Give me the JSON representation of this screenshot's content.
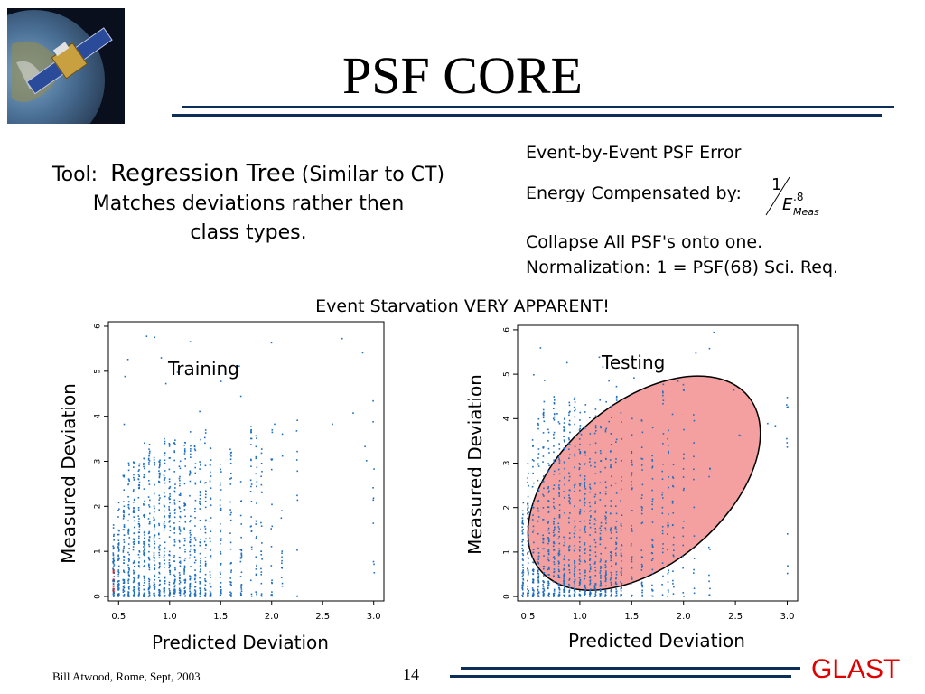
{
  "slide": {
    "title": "PSF CORE",
    "tool_prefix": "Tool:",
    "tool_name": "Regression Tree",
    "tool_similar": "(Similar to CT)",
    "tool_line2": "Matches deviations rather then",
    "tool_line3": "class types.",
    "event_psf_error": "Event-by-Event PSF Error",
    "energy_compensated": "Energy Compensated by:",
    "frac_numerator": "1",
    "frac_base": "E",
    "frac_exponent": ".8",
    "frac_subscript": "Meas",
    "collapse": "Collapse All PSF's onto one.",
    "normalization": "Normalization:  1 = PSF(68) Sci. Req.",
    "starvation": "Event Starvation VERY APPARENT!",
    "footer_author": "Bill Atwood,  Rome, Sept, 2003",
    "page_number": "14",
    "logo": "GLAST"
  },
  "chart_data": [
    {
      "type": "scatter",
      "title": "Training",
      "xlabel": "Predicted Deviation",
      "ylabel": "Measured Deviation",
      "xlim": [
        0.4,
        3.1
      ],
      "ylim": [
        -0.1,
        6.1
      ],
      "xticks": [
        "0.5",
        "1.0",
        "1.5",
        "2.0",
        "2.5",
        "3.0"
      ],
      "yticks": [
        "0",
        "1",
        "2",
        "3",
        "4",
        "5",
        "6"
      ],
      "point_color": "#1f6fbf",
      "x_columns": [
        0.45,
        0.5,
        0.55,
        0.6,
        0.65,
        0.7,
        0.75,
        0.8,
        0.85,
        0.9,
        0.95,
        1.0,
        1.05,
        1.1,
        1.15,
        1.2,
        1.25,
        1.3,
        1.35,
        1.4,
        1.5,
        1.6,
        1.7,
        1.8,
        1.85,
        1.9,
        2.0,
        2.1,
        2.25,
        3.0
      ],
      "column_max_y": [
        1.6,
        2.2,
        2.8,
        3.0,
        3.2,
        3.0,
        3.6,
        3.4,
        3.5,
        3.2,
        3.6,
        3.4,
        3.5,
        3.2,
        3.6,
        3.8,
        3.4,
        3.6,
        3.8,
        3.6,
        3.0,
        3.4,
        3.0,
        3.8,
        3.7,
        3.4,
        4.0,
        3.9,
        4.3,
        4.4
      ],
      "highlight_color": "#cc2222"
    },
    {
      "type": "scatter",
      "title": "Testing",
      "xlabel": "Predicted Deviation",
      "ylabel": "Measured Deviation",
      "xlim": [
        0.4,
        3.1
      ],
      "ylim": [
        -0.1,
        6.1
      ],
      "xticks": [
        "0.5",
        "1.0",
        "1.5",
        "2.0",
        "2.5",
        "3.0"
      ],
      "yticks": [
        "0",
        "1",
        "2",
        "3",
        "4",
        "5",
        "6"
      ],
      "point_color": "#1f6fbf",
      "x_columns": [
        0.45,
        0.5,
        0.55,
        0.6,
        0.65,
        0.7,
        0.75,
        0.8,
        0.85,
        0.9,
        0.95,
        1.0,
        1.05,
        1.1,
        1.15,
        1.2,
        1.25,
        1.3,
        1.35,
        1.4,
        1.5,
        1.6,
        1.7,
        1.8,
        1.85,
        1.9,
        2.0,
        2.1,
        2.25,
        3.0
      ],
      "column_max_y": [
        2.2,
        3.0,
        3.6,
        4.0,
        4.4,
        3.8,
        4.6,
        4.0,
        4.2,
        4.4,
        4.6,
        4.2,
        4.4,
        4.1,
        4.3,
        4.6,
        4.0,
        4.4,
        4.8,
        4.3,
        4.0,
        4.4,
        4.6,
        4.9,
        4.5,
        4.2,
        4.9,
        4.4,
        4.2,
        4.6
      ],
      "ellipse": {
        "color": "#f4a0a0",
        "stroke": "#000000"
      }
    }
  ]
}
